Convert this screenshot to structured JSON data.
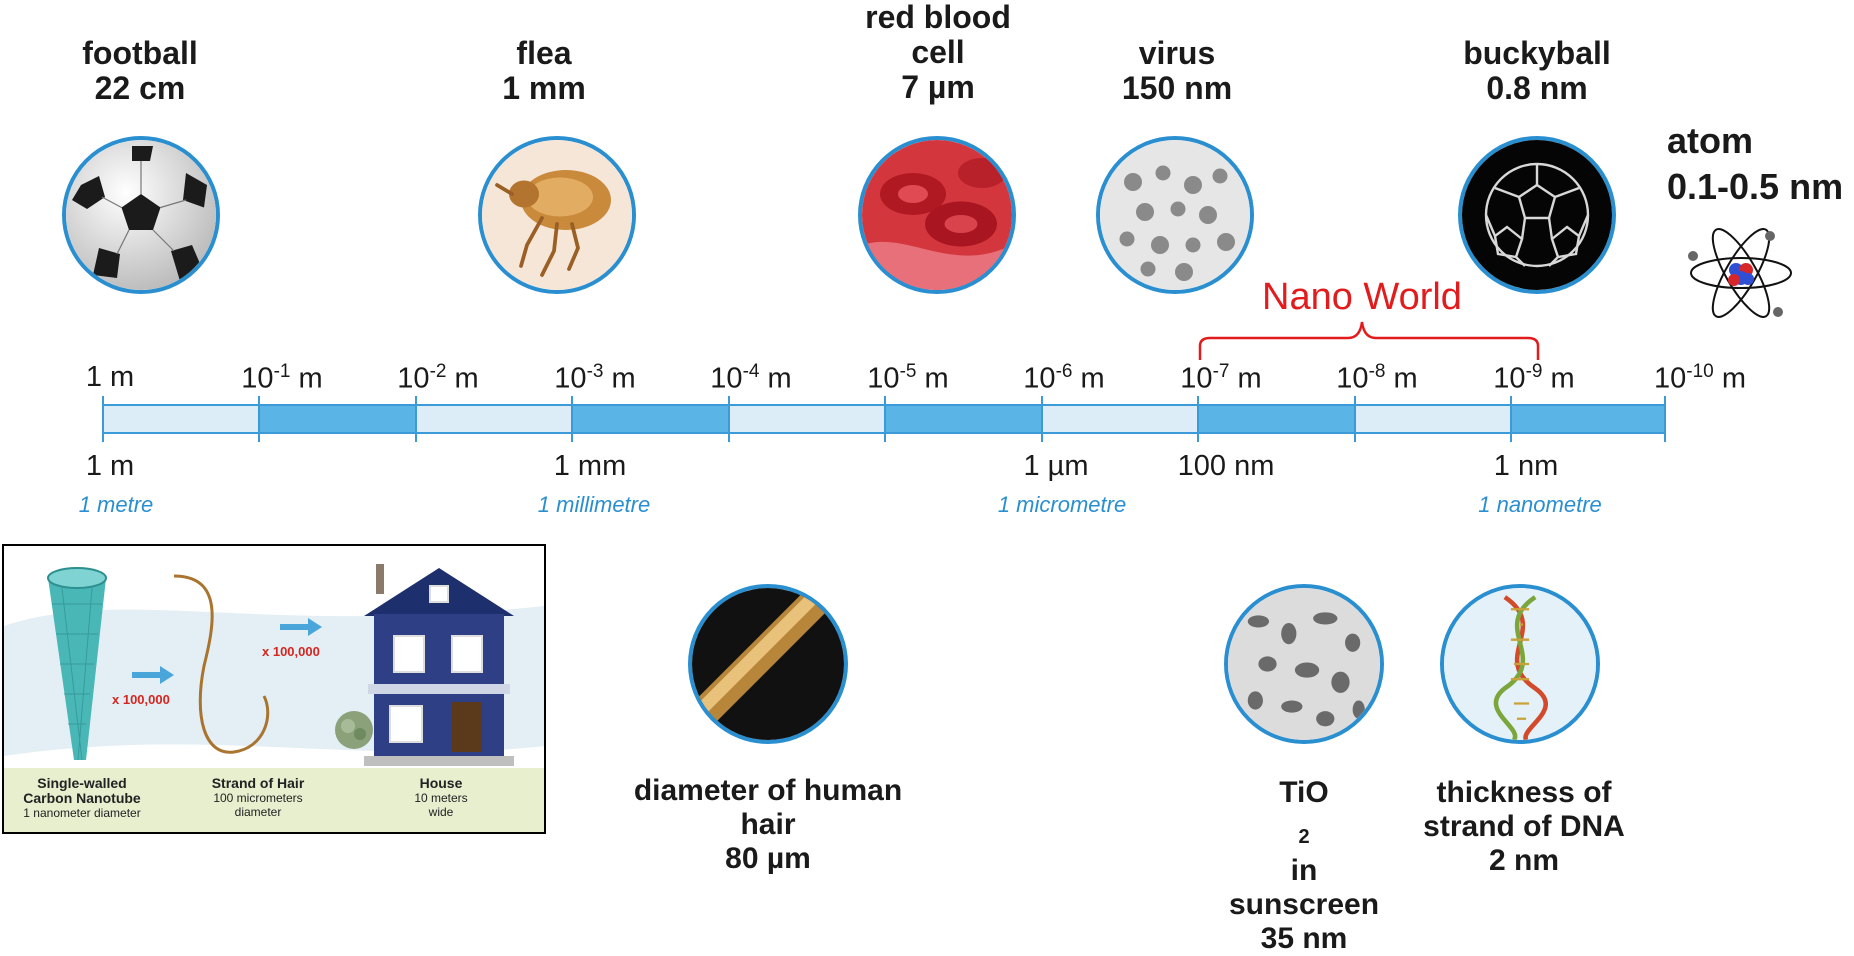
{
  "top_items": [
    {
      "name": "football",
      "size": "22 cm",
      "icon": "football-icon"
    },
    {
      "name": "flea",
      "size": "1 mm",
      "icon": "flea-icon"
    },
    {
      "name_line1": "red blood",
      "name_line2": "cell",
      "size": "7 µm",
      "icon": "red-blood-cell-icon"
    },
    {
      "name": "virus",
      "size": "150 nm",
      "icon": "virus-icon"
    },
    {
      "name": "buckyball",
      "size": "0.8 nm",
      "icon": "buckyball-icon"
    }
  ],
  "atom": {
    "name": "atom",
    "size": "0.1-0.5 nm",
    "icon": "atom-icon"
  },
  "nano_world": "Nano World",
  "scale_top": [
    {
      "base": "1 m"
    },
    {
      "base": "10",
      "exp": "-1",
      "unit": " m"
    },
    {
      "base": "10",
      "exp": "-2",
      "unit": " m"
    },
    {
      "base": "10",
      "exp": "-3",
      "unit": " m"
    },
    {
      "base": "10",
      "exp": "-4",
      "unit": " m"
    },
    {
      "base": "10",
      "exp": "-5",
      "unit": " m"
    },
    {
      "base": "10",
      "exp": "-6",
      "unit": " m"
    },
    {
      "base": "10",
      "exp": "-7",
      "unit": " m"
    },
    {
      "base": "10",
      "exp": "-8",
      "unit": " m"
    },
    {
      "base": "10",
      "exp": "-9",
      "unit": " m"
    },
    {
      "base": "10",
      "exp": "-10",
      "unit": " m"
    }
  ],
  "scale_bottom": [
    {
      "value": "1 m",
      "name": "1 metre"
    },
    {
      "value": "1 mm",
      "name": "1 millimetre"
    },
    {
      "value": "1 µm",
      "name": "1 micrometre"
    },
    {
      "value": "100 nm"
    },
    {
      "value": "1 nm",
      "name": "1 nanometre"
    }
  ],
  "colors": {
    "bar_dark": "#5ab4e6",
    "bar_light": "#dcedf8",
    "circle_border": "#2a8fd0",
    "nano_red": "#e21c1c"
  },
  "inset": {
    "multiplier": "x 100,000",
    "items": [
      {
        "title_line1": "Single-walled",
        "title_line2": "Carbon Nanotube",
        "desc_line1": "1 nanometer diameter"
      },
      {
        "title_line1": "Strand of Hair",
        "desc_line1": "100 micrometers",
        "desc_line2": "diameter"
      },
      {
        "title_line1": "House",
        "desc_line1": "10 meters",
        "desc_line2": "wide"
      }
    ]
  },
  "bottom_items": [
    {
      "line1": "diameter of human",
      "line2": "hair",
      "line3": "80 µm",
      "icon": "human-hair-icon"
    },
    {
      "line1_pre": "TiO",
      "line1_sub": "2",
      "line1_post": " in",
      "line2": "sunscreen",
      "line3": "35 nm",
      "icon": "tio2-particles-icon"
    },
    {
      "line1": "thickness of",
      "line2": "strand of DNA",
      "line3": "2 nm",
      "icon": "dna-icon"
    }
  ]
}
